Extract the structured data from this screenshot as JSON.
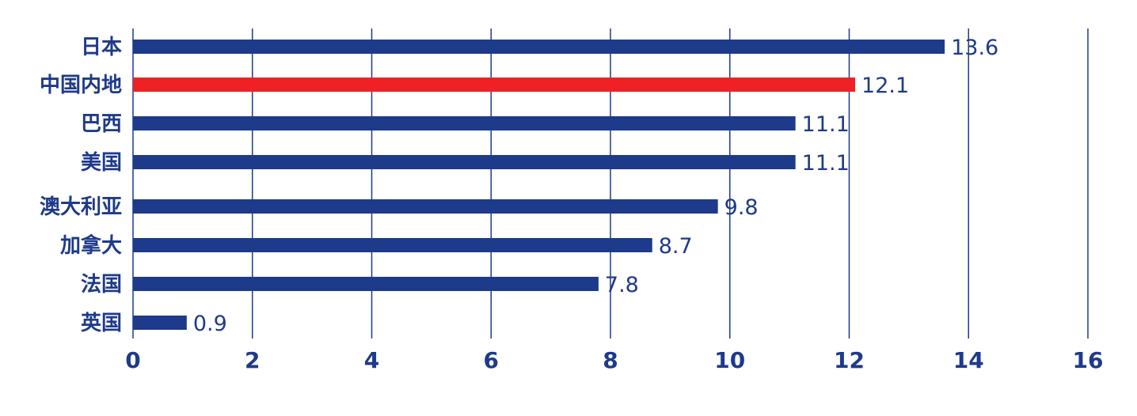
{
  "chart_data": {
    "type": "bar",
    "orientation": "horizontal",
    "categories": [
      "日本",
      "中国内地",
      "巴西",
      "美国",
      "澳大利亚",
      "加拿大",
      "法国",
      "英国"
    ],
    "values": [
      13.6,
      12.1,
      11.1,
      11.1,
      9.8,
      8.7,
      7.8,
      0.9
    ],
    "value_labels": [
      "13.6",
      "12.1",
      "11.1",
      "11.1",
      "9.8",
      "8.7",
      "7.8",
      "0.9"
    ],
    "highlight_index": 1,
    "xlim": [
      0,
      16
    ],
    "xticks": [
      0,
      2,
      4,
      6,
      8,
      10,
      12,
      14,
      16
    ],
    "xtick_labels": [
      "0",
      "2",
      "4",
      "6",
      "8",
      "10",
      "12",
      "14",
      "16"
    ],
    "title": "",
    "xlabel": "",
    "ylabel": "",
    "grid": "vertical",
    "legend": "none",
    "colors": {
      "bar": "#1e3a8a",
      "highlight": "#ee2224",
      "text": "#1e3a8a",
      "grid": "#1e3a8a"
    }
  }
}
